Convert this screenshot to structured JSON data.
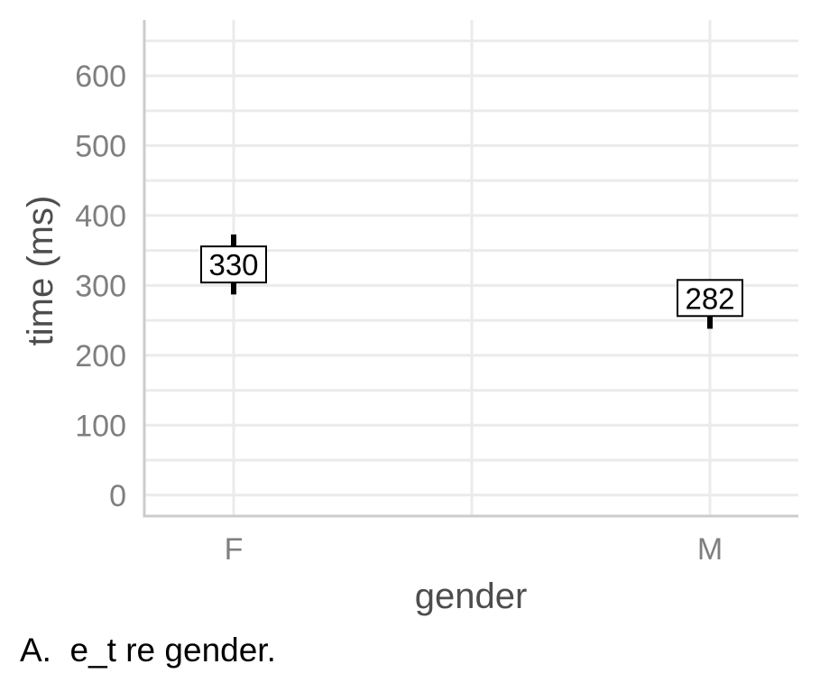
{
  "caption": "A.  e_t re gender.",
  "chart_data": {
    "type": "scatter",
    "xlabel": "gender",
    "ylabel": "time (ms)",
    "categories": [
      "F",
      "M"
    ],
    "values": [
      330,
      282
    ],
    "error_low": [
      287,
      238
    ],
    "error_high": [
      373,
      296
    ],
    "labels": [
      "330",
      "282"
    ],
    "ylim": [
      -30,
      680
    ],
    "yticks": [
      0,
      100,
      200,
      300,
      400,
      500,
      600
    ],
    "grid": true,
    "colors": {
      "grid": "#ebebeb",
      "axis": "#cccccc",
      "tick_text": "#7f7f7f",
      "title_text": "#4d4d4d",
      "marks": "#000000"
    }
  }
}
